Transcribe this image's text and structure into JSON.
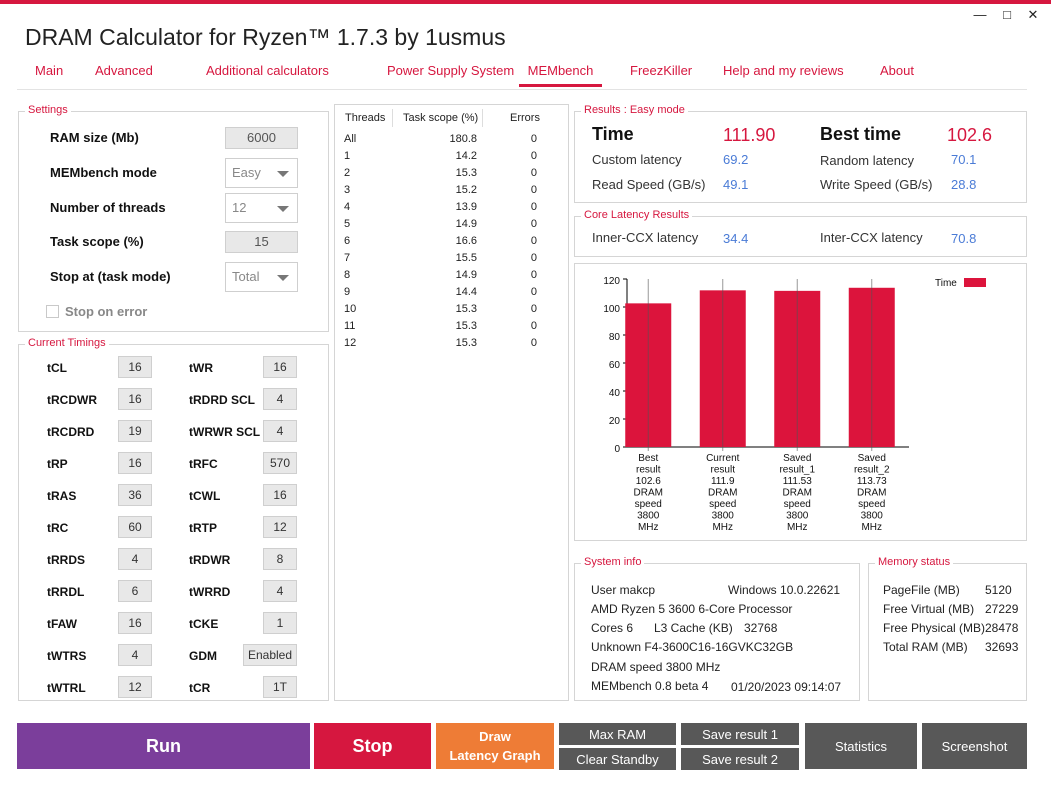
{
  "window": {
    "title": "DRAM Calculator for Ryzen™ 1.7.3 by 1usmus",
    "minimize": "—",
    "maximize": "□",
    "close": "✕"
  },
  "colors": {
    "accent": "#d6173f",
    "run": "#7b3e9b",
    "stop": "#d6173f",
    "draw": "#ee7c36",
    "gray_button": "#585858",
    "value_blue": "#4a7bd6"
  },
  "tabs": [
    {
      "label": "Main"
    },
    {
      "label": "Advanced"
    },
    {
      "label": "Additional calculators"
    },
    {
      "label": "Power Supply System"
    },
    {
      "label": "MEMbench",
      "active": true
    },
    {
      "label": "FreezKiller"
    },
    {
      "label": "Help and my reviews"
    },
    {
      "label": "About"
    }
  ],
  "settings": {
    "group_label": "Settings",
    "ram_size_label": "RAM size (Mb)",
    "ram_size_value": "6000",
    "mode_label": "MEMbench mode",
    "mode_value": "Easy",
    "threads_label": "Number of threads",
    "threads_value": "12",
    "scope_label": "Task scope (%)",
    "scope_value": "15",
    "stop_at_label": "Stop at (task mode)",
    "stop_at_value": "Total",
    "stop_on_error_label": "Stop on error"
  },
  "timings": {
    "group_label": "Current Timings",
    "left": [
      {
        "name": "tCL",
        "value": "16"
      },
      {
        "name": "tRCDWR",
        "value": "16"
      },
      {
        "name": "tRCDRD",
        "value": "19"
      },
      {
        "name": "tRP",
        "value": "16"
      },
      {
        "name": "tRAS",
        "value": "36"
      },
      {
        "name": "tRC",
        "value": "60"
      },
      {
        "name": "tRRDS",
        "value": "4"
      },
      {
        "name": "tRRDL",
        "value": "6"
      },
      {
        "name": "tFAW",
        "value": "16"
      },
      {
        "name": "tWTRS",
        "value": "4"
      },
      {
        "name": "tWTRL",
        "value": "12"
      }
    ],
    "right": [
      {
        "name": "tWR",
        "value": "16"
      },
      {
        "name": "tRDRD SCL",
        "value": "4"
      },
      {
        "name": "tWRWR SCL",
        "value": "4"
      },
      {
        "name": "tRFC",
        "value": "570"
      },
      {
        "name": "tCWL",
        "value": "16"
      },
      {
        "name": "tRTP",
        "value": "12"
      },
      {
        "name": "tRDWR",
        "value": "8"
      },
      {
        "name": "tWRRD",
        "value": "4"
      },
      {
        "name": "tCKE",
        "value": "1"
      },
      {
        "name": "GDM",
        "value": "Enabled"
      },
      {
        "name": "tCR",
        "value": "1T"
      }
    ]
  },
  "threads_table": {
    "headers": [
      "Threads",
      "Task scope (%)",
      "Errors"
    ],
    "rows": [
      [
        "All",
        "180.8",
        "0"
      ],
      [
        "1",
        "14.2",
        "0"
      ],
      [
        "2",
        "15.3",
        "0"
      ],
      [
        "3",
        "15.2",
        "0"
      ],
      [
        "4",
        "13.9",
        "0"
      ],
      [
        "5",
        "14.9",
        "0"
      ],
      [
        "6",
        "16.6",
        "0"
      ],
      [
        "7",
        "15.5",
        "0"
      ],
      [
        "8",
        "14.9",
        "0"
      ],
      [
        "9",
        "14.4",
        "0"
      ],
      [
        "10",
        "15.3",
        "0"
      ],
      [
        "11",
        "15.3",
        "0"
      ],
      [
        "12",
        "15.3",
        "0"
      ]
    ]
  },
  "results": {
    "group_label": "Results : Easy mode",
    "time_label": "Time",
    "time_value": "111.90",
    "best_label": "Best time",
    "best_value": "102.6",
    "custom_latency_label": "Custom latency",
    "custom_latency_value": "69.2",
    "random_latency_label": "Random latency",
    "random_latency_value": "70.1",
    "read_label": "Read Speed (GB/s)",
    "read_value": "49.1",
    "write_label": "Write Speed (GB/s)",
    "write_value": "28.8"
  },
  "core_latency": {
    "group_label": "Core Latency Results",
    "inner_label": "Inner-CCX latency",
    "inner_value": "34.4",
    "inter_label": "Inter-CCX latency",
    "inter_value": "70.8"
  },
  "chart_data": {
    "type": "bar",
    "categories": [
      [
        "Best",
        "result",
        "102.6",
        "DRAM",
        "speed",
        "3800",
        "MHz"
      ],
      [
        "Current",
        "result",
        "111.9",
        "DRAM",
        "speed",
        "3800",
        "MHz"
      ],
      [
        "Saved",
        "result_1",
        "111.53",
        "DRAM",
        "speed",
        "3800",
        "MHz"
      ],
      [
        "Saved",
        "result_2",
        "113.73",
        "DRAM",
        "speed",
        "3800",
        "MHz"
      ]
    ],
    "series": [
      {
        "name": "Time",
        "values": [
          102.6,
          111.9,
          111.53,
          113.73
        ],
        "color": "#dc143c"
      }
    ],
    "yticks": [
      "0",
      "20",
      "40",
      "60",
      "80",
      "100",
      "120"
    ],
    "ylim": [
      0,
      120
    ],
    "legend_position": "top-right"
  },
  "system_info": {
    "group_label": "System info",
    "user": "User makcp",
    "os": "Windows 10.0.22621",
    "cpu": "AMD Ryzen 5 3600 6-Core Processor",
    "cores": "Cores 6",
    "l3_label": "L3 Cache (KB)",
    "l3_value": "32768",
    "memory": "Unknown F4-3600C16-16GVKC32GB",
    "dram_speed": "DRAM speed 3800 MHz",
    "version": "MEMbench 0.8 beta 4",
    "datetime": "01/20/2023 09:14:07"
  },
  "memory_status": {
    "group_label": "Memory status",
    "items": [
      {
        "label": "PageFile (MB)",
        "value": "5120"
      },
      {
        "label": "Free Virtual (MB)",
        "value": "27229"
      },
      {
        "label": "Free Physical (MB)",
        "value": "28478"
      },
      {
        "label": "Total RAM (MB)",
        "value": "32693"
      }
    ]
  },
  "buttons": {
    "run": "Run",
    "stop": "Stop",
    "draw_line1": "Draw",
    "draw_line2": "Latency Graph",
    "max_ram": "Max RAM",
    "clear_standby": "Clear Standby",
    "save1": "Save result 1",
    "save2": "Save result 2",
    "statistics": "Statistics",
    "screenshot": "Screenshot"
  }
}
